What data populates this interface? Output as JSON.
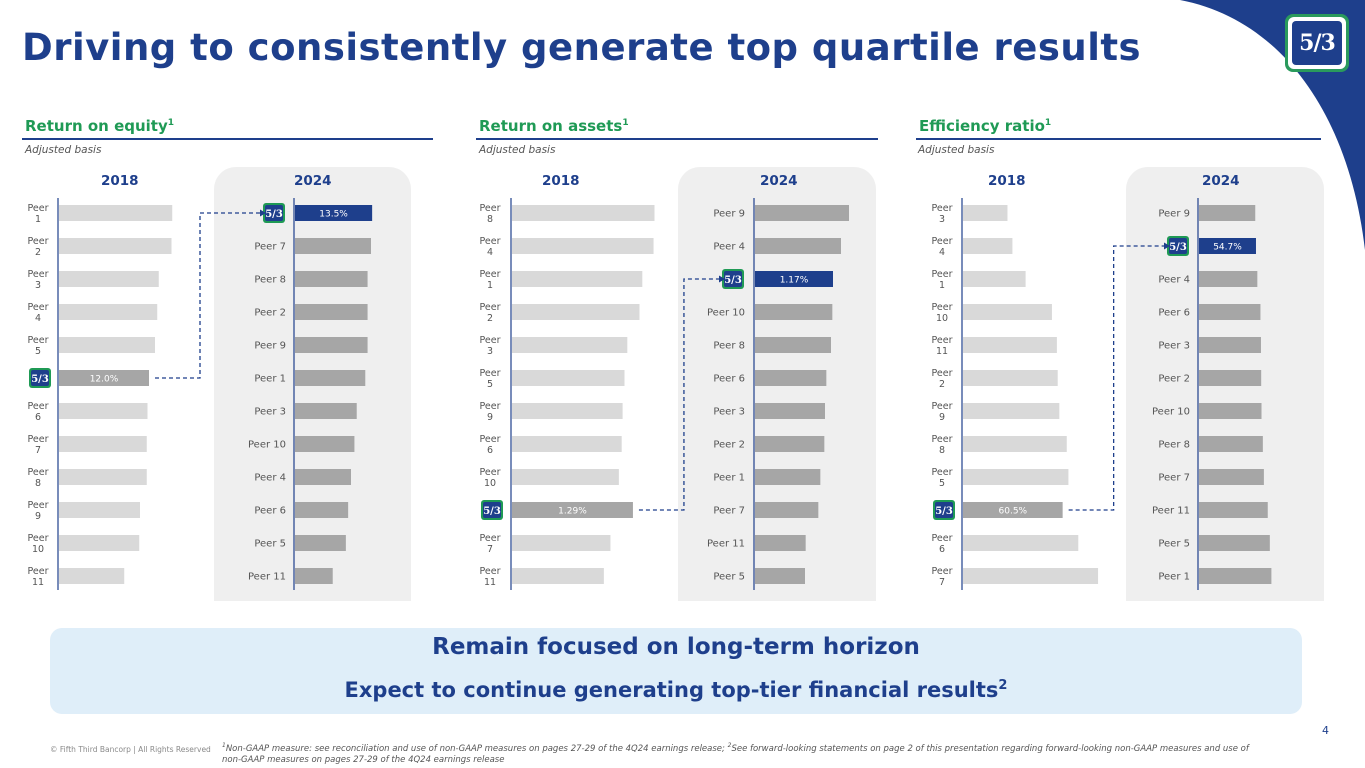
{
  "title": "Driving to consistently generate top quartile results",
  "logo_text": "5/3",
  "colors": {
    "brand_blue": "#1e3f8c",
    "brand_green": "#1f9a55",
    "bar_2018": "#d9d9d9",
    "bar_2024": "#a6a6a6",
    "fitb_2018": "#a6a6a6",
    "fitb_2024": "#1e3f8c"
  },
  "chart_data": [
    {
      "type": "bar",
      "title": "Return on equity",
      "title_sup": "1",
      "subtitle": "Adjusted basis",
      "years": [
        "2018",
        "2024"
      ],
      "series": [
        {
          "year": "2018",
          "categories": [
            "Peer 1",
            "Peer 2",
            "Peer 3",
            "Peer 4",
            "Peer 5",
            "Fifth Third",
            "Peer 6",
            "Peer 7",
            "Peer 8",
            "Peer 9",
            "Peer 10",
            "Peer 11"
          ],
          "values": [
            15.1,
            15.0,
            13.3,
            13.1,
            12.8,
            12.0,
            11.8,
            11.7,
            11.7,
            10.8,
            10.7,
            8.7
          ],
          "highlight_index": 5,
          "highlight_label": "12.0%"
        },
        {
          "year": "2024",
          "categories": [
            "Fifth Third",
            "Peer 7",
            "Peer 8",
            "Peer 2",
            "Peer 9",
            "Peer 1",
            "Peer 3",
            "Peer 10",
            "Peer 4",
            "Peer 6",
            "Peer 5",
            "Peer 11"
          ],
          "values": [
            13.5,
            13.3,
            12.7,
            12.7,
            12.7,
            12.3,
            10.8,
            10.4,
            9.8,
            9.3,
            8.9,
            6.6
          ],
          "highlight_index": 0,
          "highlight_label": "13.5%"
        }
      ]
    },
    {
      "type": "bar",
      "title": "Return on assets",
      "title_sup": "1",
      "subtitle": "Adjusted basis",
      "years": [
        "2018",
        "2024"
      ],
      "series": [
        {
          "year": "2018",
          "categories": [
            "Peer 8",
            "Peer 4",
            "Peer 1",
            "Peer 2",
            "Peer 3",
            "Peer 5",
            "Peer 9",
            "Peer 6",
            "Peer 10",
            "Fifth Third",
            "Peer 7",
            "Peer 11"
          ],
          "values": [
            1.52,
            1.51,
            1.39,
            1.36,
            1.23,
            1.2,
            1.18,
            1.17,
            1.14,
            1.29,
            1.05,
            0.98
          ],
          "highlight_index": 9,
          "highlight_label": "1.29%"
        },
        {
          "year": "2024",
          "categories": [
            "Peer 9",
            "Peer 4",
            "Fifth Third",
            "Peer 10",
            "Peer 8",
            "Peer 6",
            "Peer 3",
            "Peer 2",
            "Peer 1",
            "Peer 7",
            "Peer 11",
            "Peer 5"
          ],
          "values": [
            1.41,
            1.29,
            1.17,
            1.16,
            1.14,
            1.07,
            1.05,
            1.04,
            0.98,
            0.95,
            0.76,
            0.75
          ],
          "highlight_index": 2,
          "highlight_label": "1.17%"
        }
      ]
    },
    {
      "type": "bar",
      "title": "Efficiency ratio",
      "title_sup": "1",
      "subtitle": "Adjusted basis",
      "years": [
        "2018",
        "2024"
      ],
      "series": [
        {
          "year": "2018",
          "categories": [
            "Peer 3",
            "Peer 4",
            "Peer 1",
            "Peer 10",
            "Peer 11",
            "Peer 2",
            "Peer 9",
            "Peer 8",
            "Peer 5",
            "Fifth Third",
            "Peer 6",
            "Peer 7"
          ],
          "values": [
            27,
            30,
            38,
            54,
            57,
            57.5,
            58.5,
            63,
            64,
            60.5,
            70,
            82
          ],
          "highlight_index": 9,
          "highlight_label": "60.5%"
        },
        {
          "year": "2024",
          "categories": [
            "Peer 9",
            "Fifth Third",
            "Peer 4",
            "Peer 6",
            "Peer 3",
            "Peer 2",
            "Peer 10",
            "Peer 8",
            "Peer 7",
            "Peer 11",
            "Peer 5",
            "Peer 1"
          ],
          "values": [
            54,
            54.7,
            56,
            59,
            59.5,
            59.7,
            60,
            61.3,
            62.3,
            66,
            68,
            69.5
          ],
          "highlight_index": 1,
          "highlight_label": "54.7%"
        }
      ]
    }
  ],
  "banner": {
    "line1": "Remain focused on long-term horizon",
    "line2": "Expect to continue generating top-tier financial results",
    "line2_sup": "2"
  },
  "copyright": "© Fifth Third Bancorp | All Rights Reserved",
  "footnote": {
    "sup1": "1",
    "part1": "Non-GAAP measure: see reconciliation and use of non-GAAP measures on pages 27-29 of the 4Q24 earnings release; ",
    "sup2": "2",
    "part2": "See forward-looking statements on page 2 of this presentation regarding forward-looking non-GAAP measures and use of non-GAAP measures on pages 27-29 of the 4Q24 earnings release"
  },
  "page_number": "4"
}
